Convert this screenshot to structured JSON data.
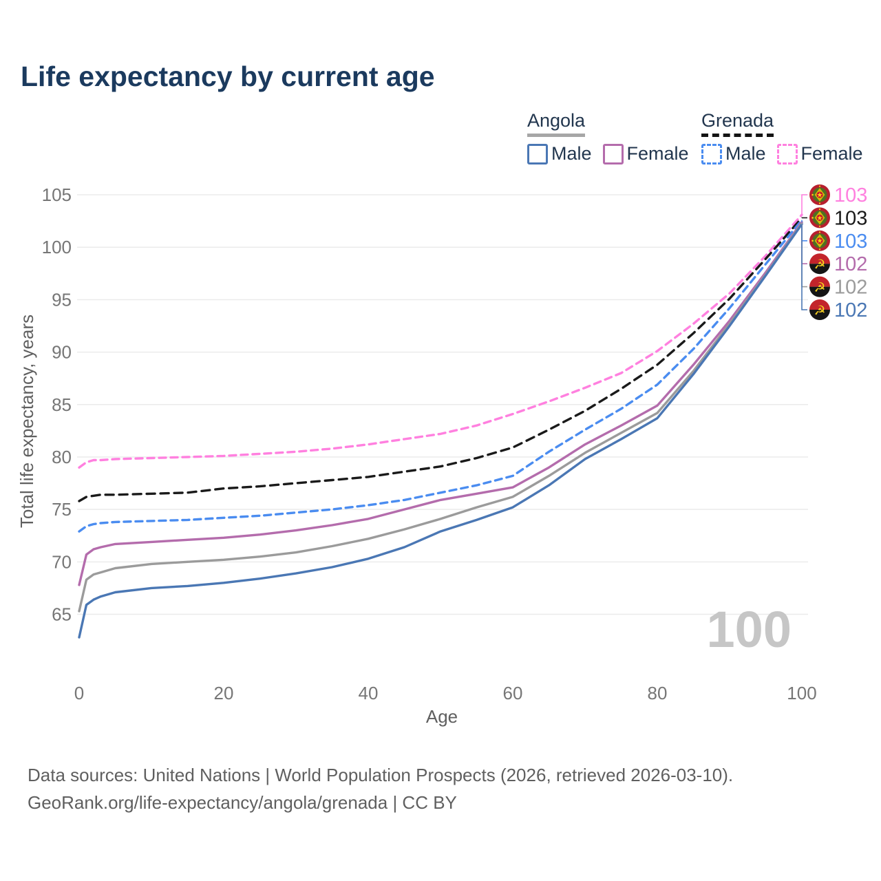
{
  "title": "Life expectancy by current age",
  "legend": {
    "angola": {
      "name": "Angola",
      "underline_color": "#a6a6a6",
      "line_style": "solid"
    },
    "grenada": {
      "name": "Grenada",
      "underline_color": "#141414",
      "line_style": "dashed"
    },
    "items": [
      {
        "id": "angola-male",
        "label": "Male",
        "color": "#4a77b4",
        "dashed": false
      },
      {
        "id": "angola-female",
        "label": "Female",
        "color": "#b46cac",
        "dashed": false
      },
      {
        "id": "grenada-male",
        "label": "Male",
        "color": "#4a8cf0",
        "dashed": true
      },
      {
        "id": "grenada-female",
        "label": "Female",
        "color": "#ff80df",
        "dashed": true
      }
    ]
  },
  "watermark": "100",
  "footer": {
    "line1": "Data sources: United Nations | World Population Prospects (2026, retrieved 2026-03-10).",
    "line2": "GeoRank.org/life-expectancy/angola/grenada | CC BY"
  },
  "end_labels": [
    {
      "series": "Grenada Female",
      "flag": "grenada",
      "value": "103",
      "color": "#ff80df"
    },
    {
      "series": "Grenada Both sexes",
      "flag": "grenada",
      "value": "103",
      "color": "#1a1a1a"
    },
    {
      "series": "Grenada Male",
      "flag": "grenada",
      "value": "103",
      "color": "#4a8cf0"
    },
    {
      "series": "Angola Female",
      "flag": "angola",
      "value": "102",
      "color": "#b46cac"
    },
    {
      "series": "Angola Both sexes",
      "flag": "angola",
      "value": "102",
      "color": "#9b9b9b"
    },
    {
      "series": "Angola Male",
      "flag": "angola",
      "value": "102",
      "color": "#4a77b4"
    }
  ],
  "chart_data": {
    "type": "line",
    "title": "Life expectancy by current age",
    "xlabel": "Age",
    "ylabel": "Total life expectancy, years",
    "xlim": [
      0,
      100
    ],
    "ylim": [
      62,
      106
    ],
    "xticks": [
      0,
      20,
      40,
      60,
      80,
      100
    ],
    "yticks": [
      65,
      70,
      75,
      80,
      85,
      90,
      95,
      100,
      105
    ],
    "grid": "horizontal",
    "legend_position": "top-right",
    "x": [
      0,
      1,
      2,
      3,
      5,
      10,
      15,
      20,
      25,
      30,
      35,
      40,
      45,
      50,
      55,
      60,
      65,
      70,
      75,
      80,
      85,
      90,
      95,
      100
    ],
    "series": [
      {
        "name": "Grenada Female",
        "country": "Grenada",
        "sex": "Female",
        "color": "#ff80df",
        "dash": [
          10,
          7
        ],
        "values": [
          79.0,
          79.5,
          79.7,
          79.7,
          79.8,
          79.9,
          80.0,
          80.1,
          80.3,
          80.5,
          80.8,
          81.2,
          81.7,
          82.2,
          83.0,
          84.1,
          85.3,
          86.6,
          88.0,
          90.1,
          92.7,
          95.6,
          99.2,
          103.1
        ]
      },
      {
        "name": "Grenada Both sexes",
        "country": "Grenada",
        "sex": "Both",
        "color": "#1a1a1a",
        "dash": [
          12,
          8
        ],
        "values": [
          75.8,
          76.2,
          76.3,
          76.4,
          76.4,
          76.5,
          76.6,
          77.0,
          77.2,
          77.5,
          77.8,
          78.1,
          78.6,
          79.1,
          79.9,
          80.9,
          82.6,
          84.4,
          86.5,
          88.8,
          91.8,
          95.1,
          98.9,
          102.8
        ]
      },
      {
        "name": "Grenada Male",
        "country": "Grenada",
        "sex": "Male",
        "color": "#4a8cf0",
        "dash": [
          10,
          7
        ],
        "values": [
          72.9,
          73.4,
          73.6,
          73.7,
          73.8,
          73.9,
          74.0,
          74.2,
          74.4,
          74.7,
          75.0,
          75.4,
          75.9,
          76.6,
          77.3,
          78.2,
          80.5,
          82.6,
          84.6,
          86.9,
          90.3,
          94.2,
          98.4,
          102.6
        ]
      },
      {
        "name": "Angola Female",
        "country": "Angola",
        "sex": "Female",
        "color": "#b46cac",
        "dash": null,
        "values": [
          67.8,
          70.7,
          71.2,
          71.4,
          71.7,
          71.9,
          72.1,
          72.3,
          72.6,
          73.0,
          73.5,
          74.1,
          75.0,
          75.9,
          76.5,
          77.1,
          79.0,
          81.2,
          83.0,
          84.9,
          88.8,
          93.0,
          97.6,
          102.4
        ]
      },
      {
        "name": "Angola Both sexes",
        "country": "Angola",
        "sex": "Both",
        "color": "#9b9b9b",
        "dash": null,
        "values": [
          65.3,
          68.3,
          68.8,
          69.0,
          69.4,
          69.8,
          70.0,
          70.2,
          70.5,
          70.9,
          71.5,
          72.2,
          73.1,
          74.1,
          75.2,
          76.2,
          78.2,
          80.4,
          82.3,
          84.2,
          88.2,
          92.7,
          97.4,
          102.3
        ]
      },
      {
        "name": "Angola Male",
        "country": "Angola",
        "sex": "Male",
        "color": "#4a77b4",
        "dash": null,
        "values": [
          62.8,
          65.9,
          66.4,
          66.7,
          67.1,
          67.5,
          67.7,
          68.0,
          68.4,
          68.9,
          69.5,
          70.3,
          71.4,
          72.9,
          74.0,
          75.2,
          77.3,
          79.8,
          81.7,
          83.7,
          87.9,
          92.5,
          97.3,
          102.2
        ]
      }
    ]
  }
}
